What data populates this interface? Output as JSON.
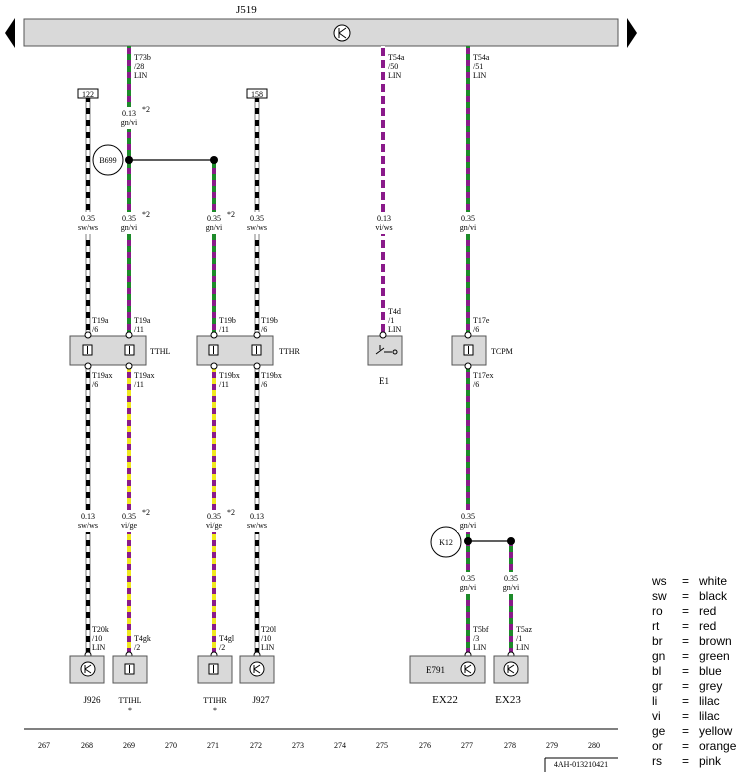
{
  "header": {
    "unit": "J519",
    "nav_left": "previous-page",
    "nav_right": "next-page"
  },
  "refs": {
    "r122": "122",
    "r158": "158"
  },
  "pins": {
    "t73b": [
      "T73b",
      "/28",
      "LIN"
    ],
    "t54a50": [
      "T54a",
      "/50",
      "LIN"
    ],
    "t54a51": [
      "T54a",
      "/51",
      "LIN"
    ],
    "t19a6": [
      "T19a",
      "/6"
    ],
    "t19a11": [
      "T19a",
      "/11"
    ],
    "t19b11": [
      "T19b",
      "/11"
    ],
    "t19b6": [
      "T19b",
      "/6"
    ],
    "t4d": [
      "T4d",
      "/1",
      "LIN"
    ],
    "t17e": [
      "T17e",
      "/6"
    ],
    "t19ax6": [
      "T19ax",
      "/6"
    ],
    "t19ax11": [
      "T19ax",
      "/11"
    ],
    "t19bx11": [
      "T19bx",
      "/11"
    ],
    "t19bx6": [
      "T19bx",
      "/6"
    ],
    "t17ex": [
      "T17ex",
      "/6"
    ],
    "t20k": [
      "T20k",
      "/10",
      "LIN"
    ],
    "t4gk": [
      "T4gk",
      "/2"
    ],
    "t4gl": [
      "T4gl",
      "/2"
    ],
    "t20l": [
      "T20l",
      "/10",
      "LIN"
    ],
    "t5bf": [
      "T5bf",
      "/3",
      "LIN"
    ],
    "t5az": [
      "T5az",
      "/1",
      "LIN"
    ]
  },
  "wires": {
    "w269a": [
      "0.13",
      "gn/vi"
    ],
    "w268a": [
      "0.35",
      "sw/ws"
    ],
    "w269b": [
      "0.35",
      "gn/vi"
    ],
    "w271a": [
      "0.35",
      "gn/vi"
    ],
    "w272a": [
      "0.35",
      "sw/ws"
    ],
    "w275a": [
      "0.13",
      "vi/ws"
    ],
    "w277a": [
      "0.35",
      "gn/vi"
    ],
    "w268b": [
      "0.13",
      "sw/ws"
    ],
    "w269c": [
      "0.35",
      "vi/ge"
    ],
    "w271b": [
      "0.35",
      "vi/ge"
    ],
    "w272b": [
      "0.13",
      "sw/ws"
    ],
    "w277b": [
      "0.35",
      "gn/vi"
    ],
    "w277c": [
      "0.35",
      "gn/vi"
    ],
    "w278a": [
      "0.35",
      "gn/vi"
    ]
  },
  "notes": {
    "star2": "*2",
    "star": "*"
  },
  "splices": {
    "b699": "B699",
    "k12": "K12"
  },
  "connectors": {
    "tthl": "TTHL",
    "tthr": "TTHR",
    "tcpm": "TCPM"
  },
  "components": {
    "e1": "E1",
    "j926": "J926",
    "ttihl": "TTIHL",
    "ttihr": "TTIHR",
    "j927": "J927",
    "e791": "E791",
    "ex22": "EX22",
    "ex23": "EX23"
  },
  "columns": [
    "267",
    "268",
    "269",
    "270",
    "271",
    "272",
    "273",
    "274",
    "275",
    "276",
    "277",
    "278",
    "279",
    "280"
  ],
  "doc_id": "4AH-013210421",
  "legend": [
    {
      "code": "ws",
      "eq": "=",
      "name": "white"
    },
    {
      "code": "sw",
      "eq": "=",
      "name": "black"
    },
    {
      "code": "ro",
      "eq": "=",
      "name": "red"
    },
    {
      "code": "rt",
      "eq": "=",
      "name": "red"
    },
    {
      "code": "br",
      "eq": "=",
      "name": "brown"
    },
    {
      "code": "gn",
      "eq": "=",
      "name": "green"
    },
    {
      "code": "bl",
      "eq": "=",
      "name": "blue"
    },
    {
      "code": "gr",
      "eq": "=",
      "name": "grey"
    },
    {
      "code": "li",
      "eq": "=",
      "name": "lilac"
    },
    {
      "code": "vi",
      "eq": "=",
      "name": "lilac"
    },
    {
      "code": "ge",
      "eq": "=",
      "name": "yellow"
    },
    {
      "code": "or",
      "eq": "=",
      "name": "orange"
    },
    {
      "code": "rs",
      "eq": "=",
      "name": "pink"
    }
  ],
  "colors": {
    "gn": "#1d8a2a",
    "vi": "#8a1a8a",
    "ge": "#f0e81e",
    "sw": "#000000",
    "ws": "#ffffff",
    "box": "#d9d9d9"
  }
}
